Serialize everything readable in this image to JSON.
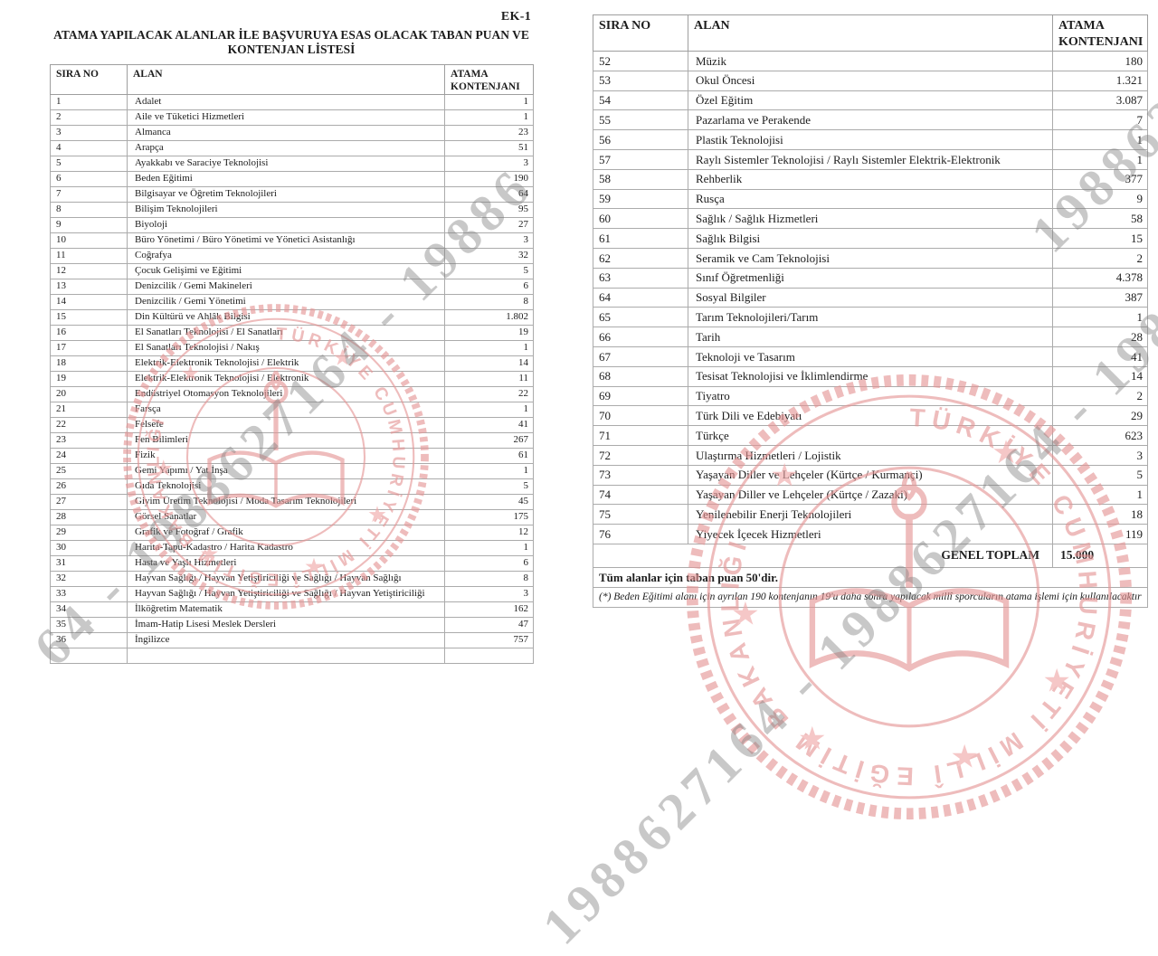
{
  "document": {
    "annex_tag": "EK-1",
    "title_line1": "ATAMA YAPILACAK ALANLAR İLE BAŞVURUYA ESAS OLACAK TABAN PUAN VE",
    "title_line2": "KONTENJAN LİSTESİ"
  },
  "columns": {
    "sira_no": "SIRA NO",
    "alan": "ALAN",
    "atama_kontenjani": "ATAMA KONTENJANI"
  },
  "left_table": {
    "rows": [
      [
        "1",
        "Adalet",
        "1"
      ],
      [
        "2",
        "Aile ve Tüketici Hizmetleri",
        "1"
      ],
      [
        "3",
        "Almanca",
        "23"
      ],
      [
        "4",
        "Arapça",
        "51"
      ],
      [
        "5",
        "Ayakkabı ve Saraciye Teknolojisi",
        "3"
      ],
      [
        "6",
        "Beden Eğitimi",
        "190"
      ],
      [
        "7",
        "Bilgisayar ve Öğretim Teknolojileri",
        "64"
      ],
      [
        "8",
        "Bilişim Teknolojileri",
        "95"
      ],
      [
        "9",
        "Biyoloji",
        "27"
      ],
      [
        "10",
        "Büro Yönetimi / Büro Yönetimi ve Yönetici Asistanlığı",
        "3"
      ],
      [
        "11",
        "Coğrafya",
        "32"
      ],
      [
        "12",
        "Çocuk Gelişimi ve Eğitimi",
        "5"
      ],
      [
        "13",
        "Denizcilik / Gemi Makineleri",
        "6"
      ],
      [
        "14",
        "Denizcilik / Gemi Yönetimi",
        "8"
      ],
      [
        "15",
        "Din Kültürü ve Ahlâk Bilgisi",
        "1.802"
      ],
      [
        "16",
        "El Sanatları Teknolojisi / El Sanatları",
        "19"
      ],
      [
        "17",
        "El Sanatları Teknolojisi / Nakış",
        "1"
      ],
      [
        "18",
        "Elektrik-Elektronik Teknolojisi / Elektrik",
        "14"
      ],
      [
        "19",
        "Elektrik-Elektronik Teknolojisi / Elektronik",
        "11"
      ],
      [
        "20",
        "Endüstriyel Otomasyon Teknolojileri",
        "22"
      ],
      [
        "21",
        "Farsça",
        "1"
      ],
      [
        "22",
        "Felsefe",
        "41"
      ],
      [
        "23",
        "Fen Bilimleri",
        "267"
      ],
      [
        "24",
        "Fizik",
        "61"
      ],
      [
        "25",
        "Gemi Yapımı / Yat İnşa",
        "1"
      ],
      [
        "26",
        "Gıda Teknolojisi",
        "5"
      ],
      [
        "27",
        "Giyim Üretim Teknolojisi / Moda Tasarım Teknolojileri",
        "45"
      ],
      [
        "28",
        "Görsel Sanatlar",
        "175"
      ],
      [
        "29",
        "Grafik ve Fotoğraf / Grafik",
        "12"
      ],
      [
        "30",
        "Harita-Tapu-Kadastro / Harita Kadastro",
        "1"
      ],
      [
        "31",
        "Hasta ve Yaşlı Hizmetleri",
        "6"
      ],
      [
        "32",
        "Hayvan Sağlığı / Hayvan Yetiştiriciliği ve Sağlığı / Hayvan Sağlığı",
        "8"
      ],
      [
        "33",
        "Hayvan Sağlığı / Hayvan Yetiştiriciliği ve Sağlığı / Hayvan Yetiştiriciliği",
        "3"
      ],
      [
        "34",
        "İlköğretim Matematik",
        "162"
      ],
      [
        "35",
        "İmam-Hatip Lisesi Meslek Dersleri",
        "47"
      ],
      [
        "36",
        "İngilizce",
        "757"
      ]
    ]
  },
  "right_table": {
    "rows": [
      [
        "52",
        "Müzik",
        "180"
      ],
      [
        "53",
        "Okul Öncesi",
        "1.321"
      ],
      [
        "54",
        "Özel Eğitim",
        "3.087"
      ],
      [
        "55",
        "Pazarlama ve Perakende",
        "7"
      ],
      [
        "56",
        "Plastik Teknolojisi",
        "1"
      ],
      [
        "57",
        "Raylı Sistemler Teknolojisi / Raylı Sistemler Elektrik-Elektronik",
        "1"
      ],
      [
        "58",
        "Rehberlik",
        "377"
      ],
      [
        "59",
        "Rusça",
        "9"
      ],
      [
        "60",
        "Sağlık / Sağlık Hizmetleri",
        "58"
      ],
      [
        "61",
        "Sağlık Bilgisi",
        "15"
      ],
      [
        "62",
        "Seramik ve Cam Teknolojisi",
        "2"
      ],
      [
        "63",
        "Sınıf Öğretmenliği",
        "4.378"
      ],
      [
        "64",
        "Sosyal Bilgiler",
        "387"
      ],
      [
        "65",
        "Tarım Teknolojileri/Tarım",
        "1"
      ],
      [
        "66",
        "Tarih",
        "28"
      ],
      [
        "67",
        "Teknoloji ve Tasarım",
        "41"
      ],
      [
        "68",
        "Tesisat Teknolojisi ve İklimlendirme",
        "14"
      ],
      [
        "69",
        "Tiyatro",
        "2"
      ],
      [
        "70",
        "Türk Dili ve Edebiyatı",
        "29"
      ],
      [
        "71",
        "Türkçe",
        "623"
      ],
      [
        "72",
        "Ulaştırma Hizmetleri / Lojistik",
        "3"
      ],
      [
        "73",
        "Yaşayan Diller ve Lehçeler (Kürtçe / Kurmançi)",
        "5"
      ],
      [
        "74",
        "Yaşayan Diller ve Lehçeler (Kürtçe / Zazaki)",
        "1"
      ],
      [
        "75",
        "Yenilenebilir Enerji Teknolojileri",
        "18"
      ],
      [
        "76",
        "Yiyecek İçecek Hizmetleri",
        "119"
      ]
    ],
    "total_label": "GENEL TOPLAM",
    "total_value": "15.000",
    "base_score_note": "Tüm alanlar için taban puan 50'dir.",
    "footnote": "(*) Beden Eğitimi alanı için ayrılan 190 kontenjanın 19'u daha sonra yapılacak millî sporcuların atama işlemi için kullanılacaktır"
  },
  "watermark": {
    "segment_left": "64 - 1988627164 - 19886",
    "segment_right": "1988627164 - 1988627164 - 1988627164",
    "segment_corner": "1988627164"
  },
  "stamp": {
    "ring_text": "TÜRKİYE CUMHURİYETİ MİLLÎ EĞİTİM BAKANLIĞI"
  },
  "colors": {
    "stamp_red": "#e59494",
    "watermark_gray": "#7d7d7d",
    "border_gray": "#9e9e9e"
  }
}
